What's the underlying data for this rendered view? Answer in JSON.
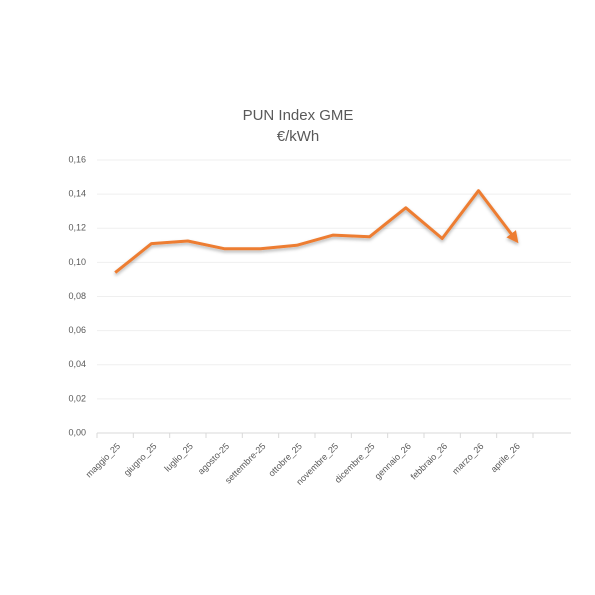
{
  "chart_data": {
    "type": "line",
    "title": "PUN Index GME",
    "subtitle": "€/kWh",
    "categories": [
      "maggio_25",
      "giugno_25",
      "luglio_25",
      "agosto-25",
      "settembre-25",
      "ottobre_25",
      "novembre_25",
      "dicembre_25",
      "gennaio_26",
      "febbraio_26",
      "marzo_26",
      "aprile_26"
    ],
    "values": [
      0.094,
      0.111,
      0.1125,
      0.108,
      0.108,
      0.11,
      0.116,
      0.115,
      0.132,
      0.114,
      0.142,
      0.114
    ],
    "color": "#ed7d31",
    "ylim": [
      0,
      0.16
    ],
    "yticks": [
      {
        "value": 0,
        "label": "0,00"
      },
      {
        "value": 0.02,
        "label": "0,02"
      },
      {
        "value": 0.04,
        "label": "0,04"
      },
      {
        "value": 0.06,
        "label": "0,06"
      },
      {
        "value": 0.08,
        "label": "0,08"
      },
      {
        "value": 0.1,
        "label": "0,10"
      },
      {
        "value": 0.12,
        "label": "0,12"
      },
      {
        "value": 0.14,
        "label": "0,14"
      },
      {
        "value": 0.16,
        "label": "0,16"
      }
    ],
    "grid": true
  }
}
